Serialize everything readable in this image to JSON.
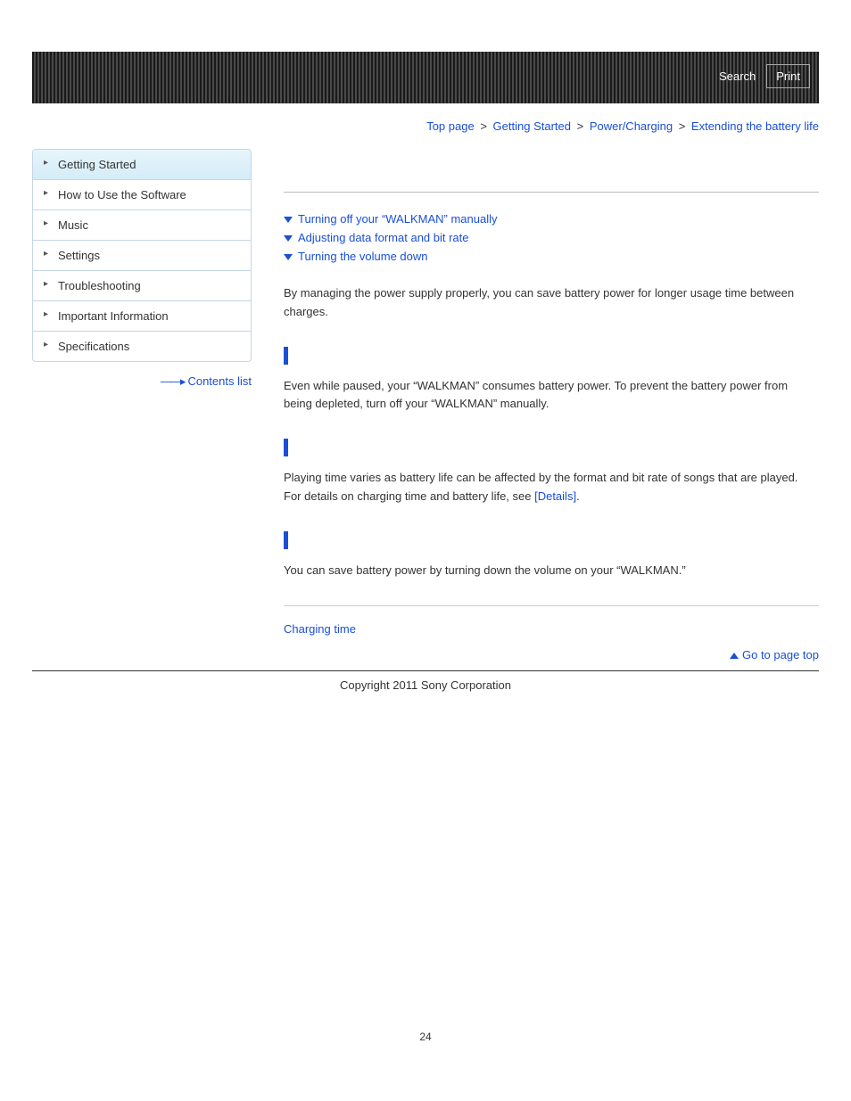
{
  "header": {
    "search": "Search",
    "print": "Print"
  },
  "breadcrumb": {
    "items": [
      "Top page",
      "Getting Started",
      "Power/Charging"
    ],
    "current": "Extending the battery life",
    "sep": ">"
  },
  "sidebar": {
    "items": [
      {
        "label": "Getting Started",
        "active": true
      },
      {
        "label": "How to Use the Software",
        "active": false
      },
      {
        "label": "Music",
        "active": false
      },
      {
        "label": "Settings",
        "active": false
      },
      {
        "label": "Troubleshooting",
        "active": false
      },
      {
        "label": "Important Information",
        "active": false
      },
      {
        "label": "Specifications",
        "active": false
      }
    ],
    "contents_link": "Contents list"
  },
  "main": {
    "anchors": [
      "Turning off your “WALKMAN” manually",
      "Adjusting data format and bit rate",
      "Turning the volume down"
    ],
    "intro": "By managing the power supply properly, you can save battery power for longer usage time between charges.",
    "sections": [
      {
        "body": "Even while paused, your “WALKMAN” consumes battery power. To prevent the battery power from being depleted, turn off your “WALKMAN” manually."
      },
      {
        "body_pre": "Playing time varies as battery life can be affected by the format and bit rate of songs that are played.\nFor details on charging time and battery life, see ",
        "details": "[Details]",
        "body_post": "."
      },
      {
        "body": "You can save battery power by turning down the volume on your “WALKMAN.”"
      }
    ],
    "related": "Charging time",
    "pagetop": "Go to page top"
  },
  "footer": {
    "copyright": "Copyright 2011 Sony Corporation",
    "pagenum": "24"
  },
  "colors": {
    "link": "#1a4fd6",
    "band_dark": "#1a1a1a",
    "band_light": "#4a4a4a",
    "nav_border": "#c5d6e8",
    "nav_active_top": "#e8f5fb",
    "nav_active_bot": "#d4ecf7"
  }
}
